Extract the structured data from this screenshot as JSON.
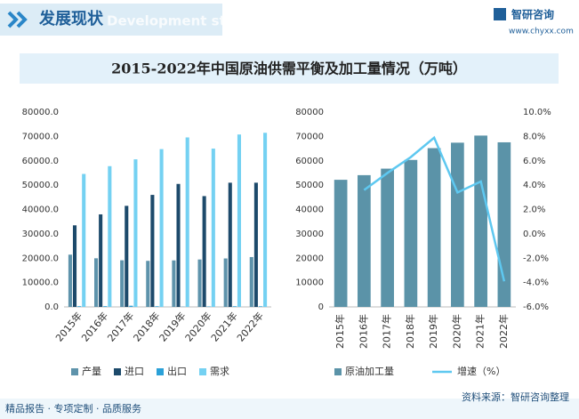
{
  "header": {
    "title": "发展现状",
    "watermark": "Development status",
    "brand": "智研咨询",
    "url": "www.chyxx.com"
  },
  "title": "2015-2022年中国原油供需平衡及加工量情况（万吨）",
  "chart_data": [
    {
      "type": "bar",
      "categories": [
        "2015年",
        "2016年",
        "2017年",
        "2018年",
        "2019年",
        "2020年",
        "2021年",
        "2022年"
      ],
      "series": [
        {
          "name": "产量",
          "color": "#5e93ab",
          "values": [
            21456,
            19969,
            19151,
            18911,
            19101,
            19477,
            19898,
            20472
          ]
        },
        {
          "name": "进口",
          "color": "#1d4a6b",
          "values": [
            33500,
            38000,
            41500,
            46000,
            50500,
            45500,
            51000,
            51000
          ]
        },
        {
          "name": "出口",
          "color": "#2ba1d8",
          "values": [
            287,
            294,
            486,
            263,
            81,
            164,
            260,
            245
          ]
        },
        {
          "name": "需求",
          "color": "#74d1f2",
          "values": [
            54600,
            57800,
            60600,
            64800,
            69600,
            65000,
            70800,
            71500
          ]
        }
      ],
      "ylim": [
        0,
        80000
      ],
      "yticks": [
        {
          "value": 0,
          "label": "0.0"
        },
        {
          "value": 10000,
          "label": "10000.0"
        },
        {
          "value": 20000,
          "label": "20000.0"
        },
        {
          "value": 30000,
          "label": "30000.0"
        },
        {
          "value": 40000,
          "label": "40000.0"
        },
        {
          "value": 50000,
          "label": "50000.0"
        },
        {
          "value": 60000,
          "label": "60000.0"
        },
        {
          "value": 70000,
          "label": "70000.0"
        },
        {
          "value": 80000,
          "label": "80000.0"
        }
      ]
    },
    {
      "type": "bar",
      "categories": [
        "2015年",
        "2016年",
        "2017年",
        "2018年",
        "2019年",
        "2020年",
        "2021年",
        "2022年"
      ],
      "series": [
        {
          "name": "原油加工量",
          "color": "#5b93a8",
          "values": [
            52199,
            54101,
            56777,
            60357,
            65198,
            67441,
            70355,
            67590
          ]
        },
        {
          "name": "增速（%）",
          "color": "#5ec8f0",
          "type": "line",
          "axis": "y2",
          "values": [
            null,
            3.6,
            5.0,
            6.3,
            7.9,
            3.4,
            4.3,
            -3.9
          ]
        }
      ],
      "ylim": [
        0,
        80000
      ],
      "yticks": [
        0,
        10000,
        20000,
        30000,
        40000,
        50000,
        60000,
        70000,
        80000
      ],
      "y2lim": [
        -6,
        10
      ],
      "y2ticks": [
        {
          "value": -6,
          "label": "-6.0%"
        },
        {
          "value": -4,
          "label": "-4.0%"
        },
        {
          "value": -2,
          "label": "-2.0%"
        },
        {
          "value": 0,
          "label": "0.0%"
        },
        {
          "value": 2,
          "label": "2.0%"
        },
        {
          "value": 4,
          "label": "4.0%"
        },
        {
          "value": 6,
          "label": "6.0%"
        },
        {
          "value": 8,
          "label": "8.0%"
        },
        {
          "value": 10,
          "label": "10.0%"
        }
      ]
    }
  ],
  "footer": {
    "left": "精品报告 · 专项定制 · 品质服务",
    "source": "资料来源：智研咨询整理"
  }
}
